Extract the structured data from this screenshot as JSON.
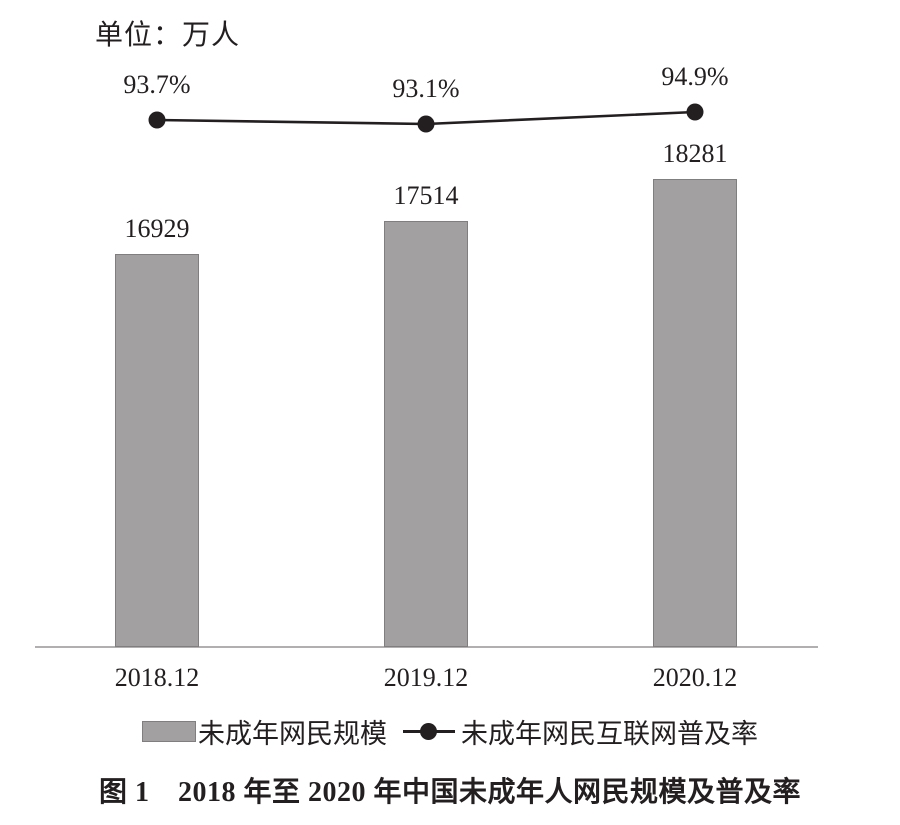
{
  "unit_label": "单位：万人",
  "chart_data": {
    "type": "bar",
    "combo": "bar + line",
    "title": "图 1　2018 年至 2020 年中国未成年人网民规模及普及率",
    "categories": [
      "2018.12",
      "2019.12",
      "2020.12"
    ],
    "series": [
      {
        "name": "未成年网民规模",
        "type": "bar",
        "unit": "万人",
        "values": [
          16929,
          17514,
          18281
        ],
        "value_labels": [
          "16929",
          "17514",
          "18281"
        ],
        "color": "#a2a0a1"
      },
      {
        "name": "未成年网民互联网普及率",
        "type": "line",
        "unit": "%",
        "values": [
          93.7,
          93.1,
          94.9
        ],
        "value_labels": [
          "93.7%",
          "93.1%",
          "94.9%"
        ],
        "color": "#231f20"
      }
    ],
    "grid": false,
    "legend_position": "bottom",
    "ylabel": "单位：万人"
  },
  "legend": {
    "items": [
      {
        "label": "未成年网民规模",
        "swatch": "gray-bar"
      },
      {
        "label": "未成年网民互联网普及率",
        "swatch": "line-dot"
      }
    ]
  },
  "caption": "图 1　2018 年至 2020 年中国未成年人网民规模及普及率",
  "colors": {
    "bar_fill": "#a2a0a1",
    "bar_border": "#807e7f",
    "line": "#231f20",
    "text": "#231f20",
    "axis": "#b2afb0",
    "background": "#ffffff"
  }
}
